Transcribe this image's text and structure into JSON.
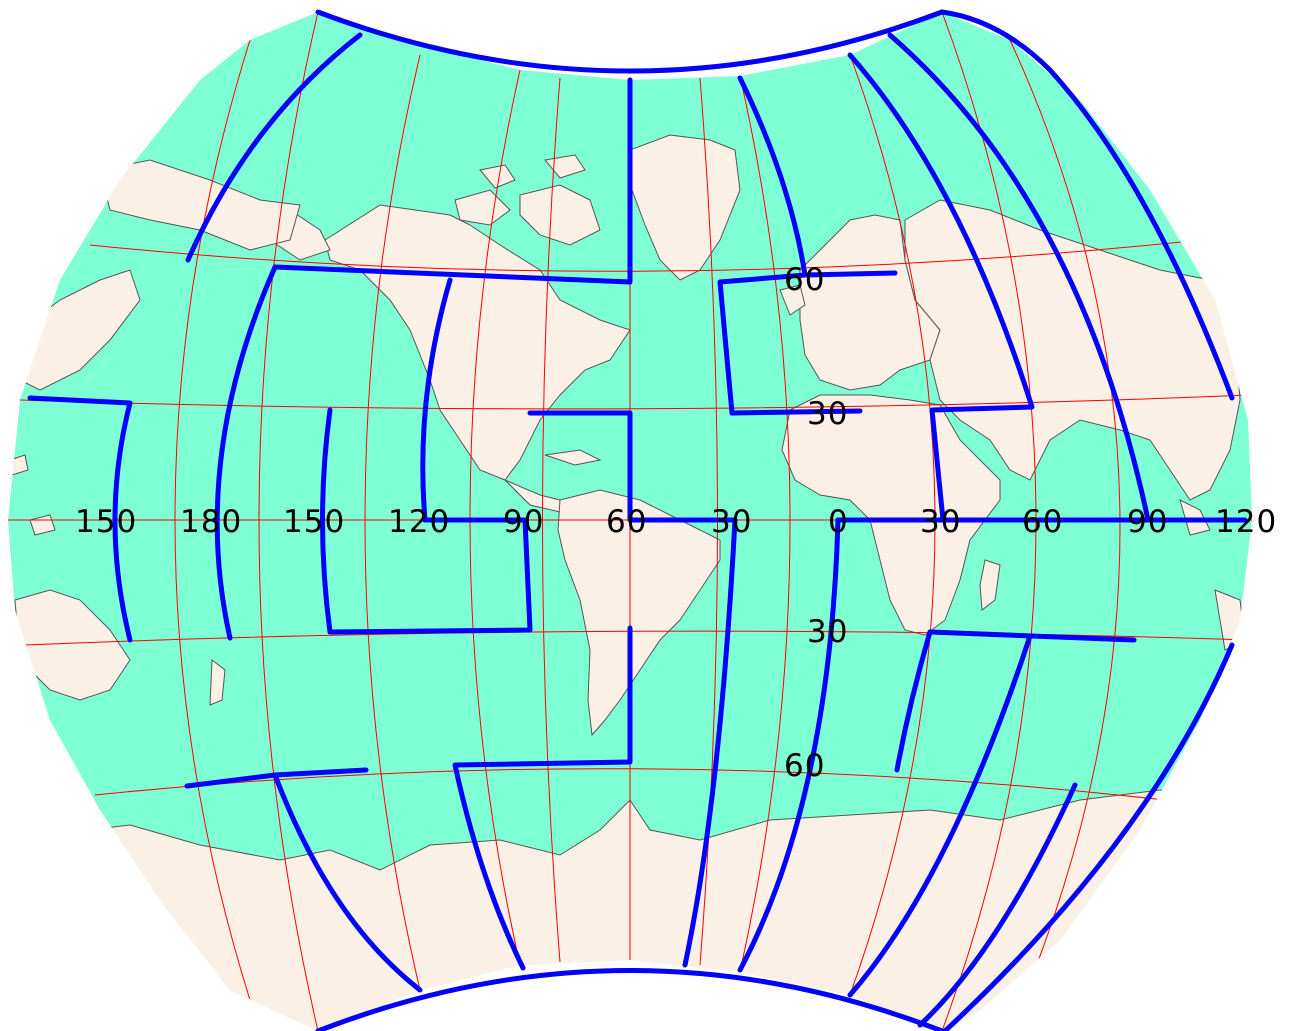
{
  "map": {
    "colors": {
      "ocean": "#7fffd4",
      "land": "#faf0e6",
      "graticule": "#ff0000",
      "boundary": "#0000ff",
      "coastline": "#555555"
    },
    "meridian_labels": [
      "150",
      "180",
      "150",
      "120",
      "90",
      "60",
      "30",
      "0",
      "30",
      "60",
      "90",
      "120"
    ],
    "parallel_labels": [
      "60",
      "30",
      "30",
      "60"
    ]
  }
}
